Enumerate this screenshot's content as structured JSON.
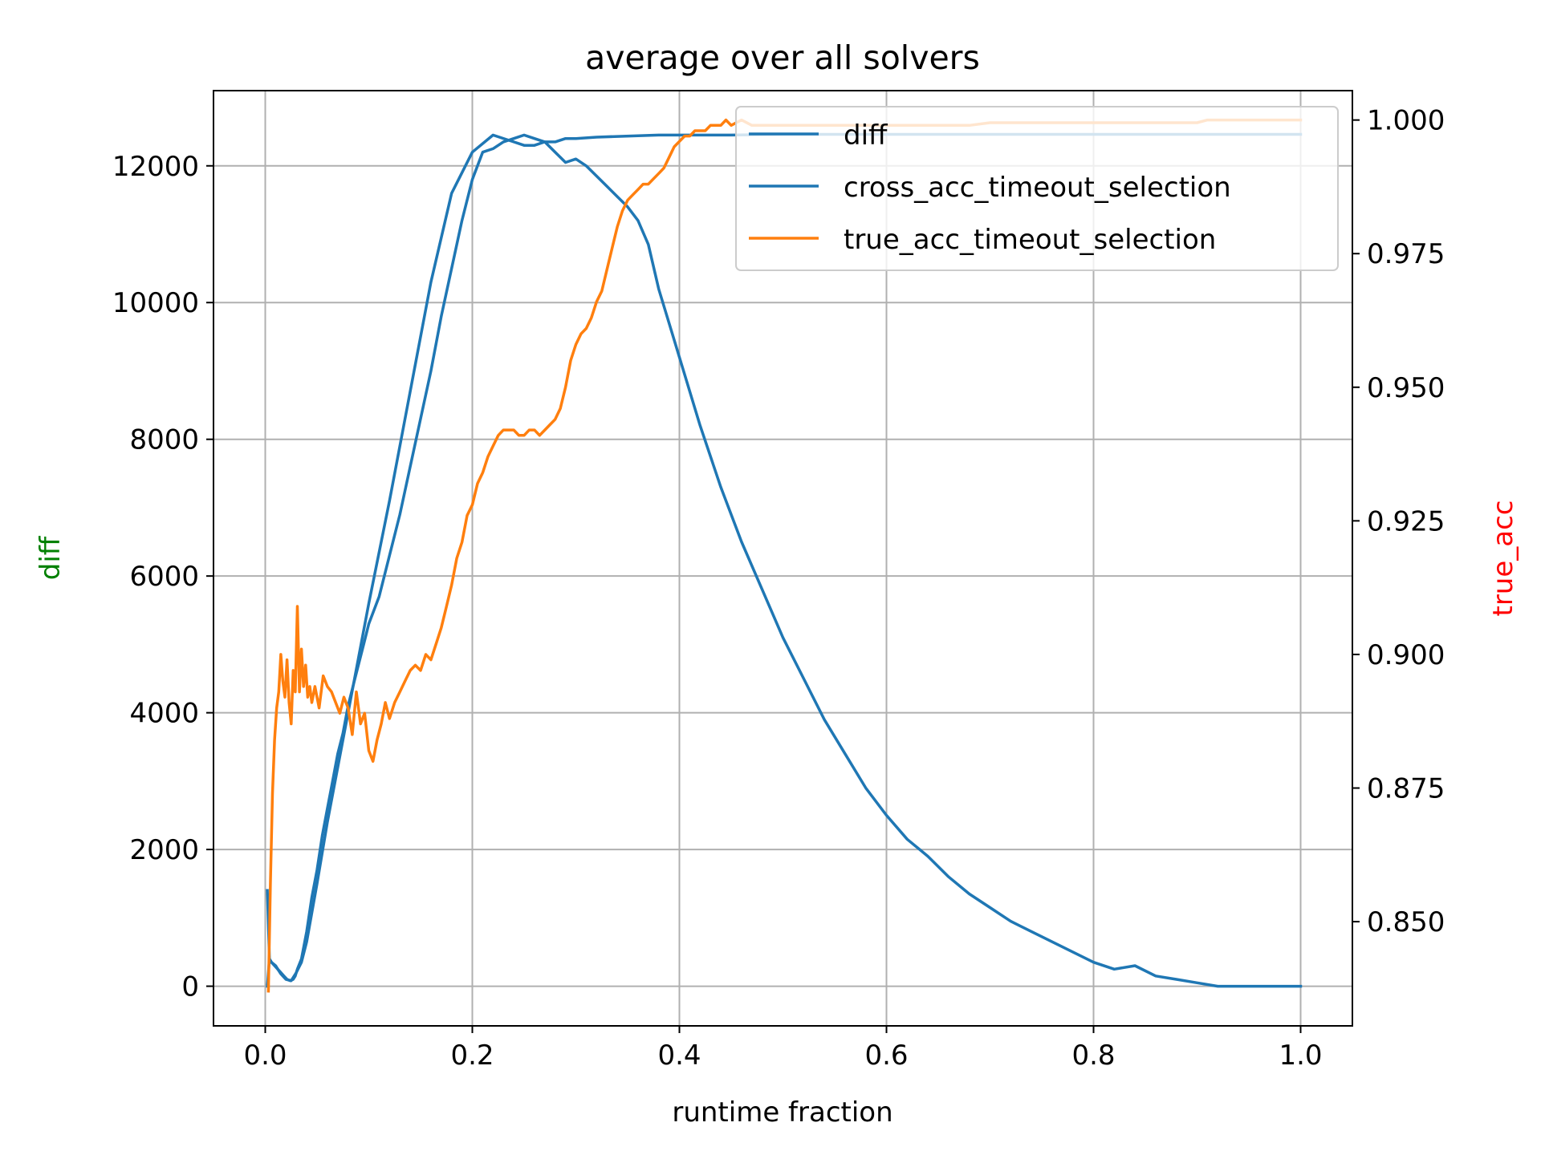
{
  "chart_data": {
    "type": "line",
    "title": "average over all solvers",
    "xlabel": "runtime fraction",
    "ylabel_left": "diff",
    "ylabel_right": "true_acc",
    "ylabel_left_color": "#008000",
    "ylabel_right_color": "#ff0000",
    "xlim": [
      -0.05,
      1.05
    ],
    "ylim_left": [
      -580,
      13100
    ],
    "ylim_right": [
      0.8305,
      1.0055
    ],
    "x_ticks": [
      "0.0",
      "0.2",
      "0.4",
      "0.6",
      "0.8",
      "1.0"
    ],
    "x_tick_values": [
      0.0,
      0.2,
      0.4,
      0.6,
      0.8,
      1.0
    ],
    "y_left_ticks": [
      "0",
      "2000",
      "4000",
      "6000",
      "8000",
      "10000",
      "12000"
    ],
    "y_left_tick_values": [
      0,
      2000,
      4000,
      6000,
      8000,
      10000,
      12000
    ],
    "y_right_ticks": [
      "0.850",
      "0.875",
      "0.900",
      "0.925",
      "0.950",
      "0.975",
      "1.000"
    ],
    "y_right_tick_values": [
      0.85,
      0.875,
      0.9,
      0.925,
      0.95,
      0.975,
      1.0
    ],
    "grid": true,
    "legend_position": "top-right",
    "series": [
      {
        "name": "diff",
        "axis": "left",
        "color": "#1f77b4",
        "x": [
          0.002,
          0.004,
          0.006,
          0.01,
          0.015,
          0.02,
          0.025,
          0.03,
          0.035,
          0.04,
          0.05,
          0.06,
          0.07,
          0.08,
          0.09,
          0.1,
          0.12,
          0.14,
          0.16,
          0.18,
          0.2,
          0.22,
          0.24,
          0.25,
          0.26,
          0.27,
          0.28,
          0.29,
          0.3,
          0.32,
          0.34,
          0.36,
          0.38,
          0.4,
          0.42,
          0.45,
          0.5,
          0.55,
          0.6,
          0.65,
          0.7,
          0.75,
          0.8,
          0.85,
          0.9,
          0.95,
          0.97,
          0.98,
          1.0
        ],
        "y": [
          1400,
          400,
          350,
          300,
          180,
          100,
          80,
          200,
          350,
          650,
          1500,
          2400,
          3200,
          4000,
          4800,
          5600,
          7100,
          8700,
          10300,
          11600,
          12200,
          12450,
          12350,
          12300,
          12300,
          12350,
          12350,
          12400,
          12400,
          12420,
          12430,
          12440,
          12450,
          12450,
          12450,
          12450,
          12460,
          12460,
          12460,
          12460,
          12460,
          12460,
          12460,
          12460,
          12460,
          12460,
          12460,
          12460,
          12460
        ]
      },
      {
        "name": "cross_acc_timeout_selection",
        "axis": "left",
        "color": "#1f77b4",
        "x": [
          0.002,
          0.004,
          0.006,
          0.009,
          0.012,
          0.015,
          0.018,
          0.021,
          0.024,
          0.027,
          0.029,
          0.031,
          0.035,
          0.04,
          0.045,
          0.05,
          0.055,
          0.06,
          0.065,
          0.07,
          0.075,
          0.08,
          0.085,
          0.09,
          0.095,
          0.1,
          0.11,
          0.12,
          0.13,
          0.14,
          0.15,
          0.16,
          0.17,
          0.18,
          0.19,
          0.2,
          0.21,
          0.22,
          0.23,
          0.24,
          0.25,
          0.26,
          0.27,
          0.28,
          0.29,
          0.3,
          0.31,
          0.32,
          0.33,
          0.34,
          0.35,
          0.36,
          0.37,
          0.38,
          0.39,
          0.4,
          0.42,
          0.44,
          0.46,
          0.48,
          0.5,
          0.52,
          0.54,
          0.56,
          0.58,
          0.6,
          0.62,
          0.64,
          0.66,
          0.68,
          0.7,
          0.72,
          0.74,
          0.76,
          0.78,
          0.8,
          0.82,
          0.84,
          0.86,
          0.88,
          0.9,
          0.92,
          0.94,
          0.96,
          0.97,
          0.975,
          0.98,
          0.99,
          1.0
        ],
        "y": [
          0,
          400,
          350,
          300,
          250,
          200,
          150,
          100,
          80,
          100,
          150,
          250,
          400,
          800,
          1300,
          1700,
          2200,
          2600,
          3000,
          3400,
          3700,
          4100,
          4400,
          4700,
          5000,
          5300,
          5700,
          6300,
          6900,
          7600,
          8300,
          9000,
          9800,
          10500,
          11200,
          11800,
          12200,
          12250,
          12350,
          12400,
          12450,
          12400,
          12350,
          12200,
          12050,
          12100,
          12000,
          11850,
          11700,
          11550,
          11400,
          11200,
          10850,
          10200,
          9700,
          9200,
          8200,
          7300,
          6500,
          5800,
          5100,
          4500,
          3900,
          3400,
          2900,
          2500,
          2150,
          1900,
          1600,
          1350,
          1150,
          950,
          800,
          650,
          500,
          350,
          250,
          300,
          150,
          100,
          50,
          0,
          0,
          0,
          0,
          0,
          0,
          0,
          0
        ]
      },
      {
        "name": "true_acc_timeout_selection",
        "axis": "right",
        "color": "#ff7f0e",
        "x": [
          0.003,
          0.005,
          0.007,
          0.009,
          0.011,
          0.013,
          0.015,
          0.017,
          0.019,
          0.021,
          0.023,
          0.025,
          0.027,
          0.029,
          0.031,
          0.033,
          0.035,
          0.037,
          0.039,
          0.041,
          0.043,
          0.045,
          0.048,
          0.052,
          0.056,
          0.06,
          0.064,
          0.068,
          0.072,
          0.076,
          0.08,
          0.084,
          0.088,
          0.092,
          0.096,
          0.1,
          0.104,
          0.108,
          0.112,
          0.116,
          0.12,
          0.125,
          0.13,
          0.135,
          0.14,
          0.145,
          0.15,
          0.155,
          0.16,
          0.165,
          0.17,
          0.175,
          0.18,
          0.185,
          0.19,
          0.195,
          0.2,
          0.205,
          0.21,
          0.215,
          0.22,
          0.225,
          0.23,
          0.235,
          0.24,
          0.245,
          0.25,
          0.255,
          0.26,
          0.265,
          0.27,
          0.275,
          0.28,
          0.285,
          0.29,
          0.295,
          0.3,
          0.305,
          0.31,
          0.315,
          0.32,
          0.325,
          0.33,
          0.335,
          0.34,
          0.345,
          0.35,
          0.355,
          0.36,
          0.365,
          0.37,
          0.375,
          0.38,
          0.385,
          0.39,
          0.395,
          0.4,
          0.405,
          0.41,
          0.415,
          0.42,
          0.425,
          0.43,
          0.435,
          0.44,
          0.445,
          0.45,
          0.46,
          0.47,
          0.48,
          0.5,
          0.55,
          0.6,
          0.65,
          0.67,
          0.68,
          0.7,
          0.75,
          0.8,
          0.85,
          0.9,
          0.91,
          0.95,
          1.0
        ],
        "y": [
          0.837,
          0.857,
          0.874,
          0.884,
          0.89,
          0.893,
          0.9,
          0.895,
          0.892,
          0.899,
          0.891,
          0.887,
          0.897,
          0.893,
          0.909,
          0.893,
          0.901,
          0.894,
          0.898,
          0.892,
          0.894,
          0.891,
          0.894,
          0.89,
          0.896,
          0.894,
          0.893,
          0.891,
          0.889,
          0.892,
          0.89,
          0.885,
          0.893,
          0.887,
          0.889,
          0.882,
          0.88,
          0.884,
          0.887,
          0.891,
          0.888,
          0.891,
          0.893,
          0.895,
          0.897,
          0.898,
          0.897,
          0.9,
          0.899,
          0.902,
          0.905,
          0.909,
          0.913,
          0.918,
          0.921,
          0.926,
          0.928,
          0.932,
          0.934,
          0.937,
          0.939,
          0.941,
          0.942,
          0.942,
          0.942,
          0.941,
          0.941,
          0.942,
          0.942,
          0.941,
          0.942,
          0.943,
          0.944,
          0.946,
          0.95,
          0.955,
          0.958,
          0.96,
          0.961,
          0.963,
          0.966,
          0.968,
          0.972,
          0.976,
          0.98,
          0.983,
          0.985,
          0.986,
          0.987,
          0.988,
          0.988,
          0.989,
          0.99,
          0.991,
          0.993,
          0.995,
          0.996,
          0.997,
          0.997,
          0.998,
          0.998,
          0.998,
          0.999,
          0.999,
          0.999,
          1.0,
          0.999,
          1.0,
          0.999,
          0.999,
          0.999,
          0.999,
          0.999,
          0.999,
          0.999,
          0.999,
          0.9995,
          0.9995,
          0.9995,
          0.9995,
          0.9995,
          1.0,
          1.0,
          1.0
        ]
      }
    ]
  }
}
